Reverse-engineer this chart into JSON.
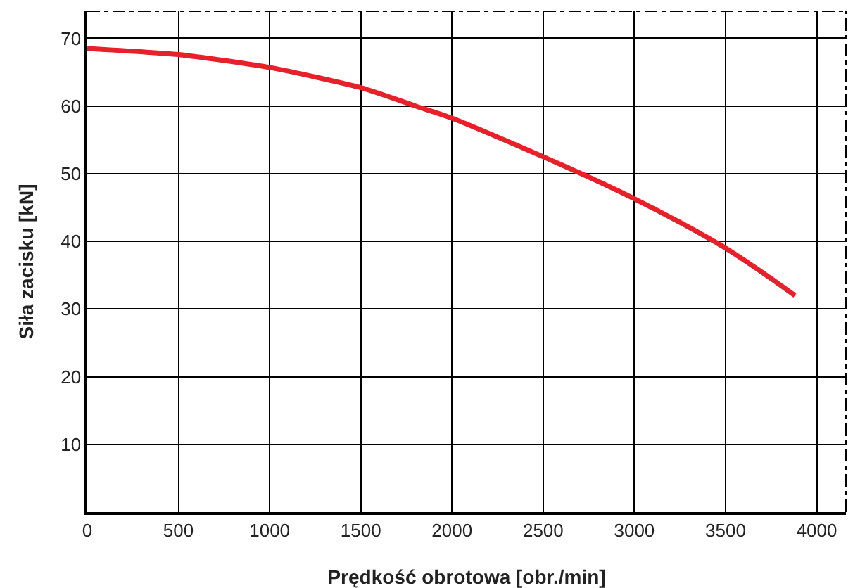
{
  "chart_data": {
    "type": "line",
    "xlabel": "Prędkość obrotowa [obr./min]",
    "ylabel": "Siła zacisku [kN]",
    "x": [
      0,
      500,
      1000,
      1500,
      1800,
      2000,
      2500,
      2750,
      3000,
      3250,
      3500,
      3750,
      3880
    ],
    "series": [
      {
        "color": "#e8202a",
        "values": [
          68.5,
          67.6,
          65.7,
          62.7,
          60,
          58.2,
          52.5,
          49.5,
          46.3,
          42.8,
          39,
          34.5,
          32
        ]
      }
    ],
    "xlim": [
      0,
      4160
    ],
    "xticks": [
      0,
      500,
      1000,
      1500,
      2000,
      2500,
      3000,
      3500,
      4000
    ],
    "ylim": [
      0,
      74
    ],
    "yticks": [
      10,
      20,
      30,
      40,
      50,
      60,
      70
    ],
    "grid": true,
    "marker": "none",
    "line_style": "solid"
  }
}
